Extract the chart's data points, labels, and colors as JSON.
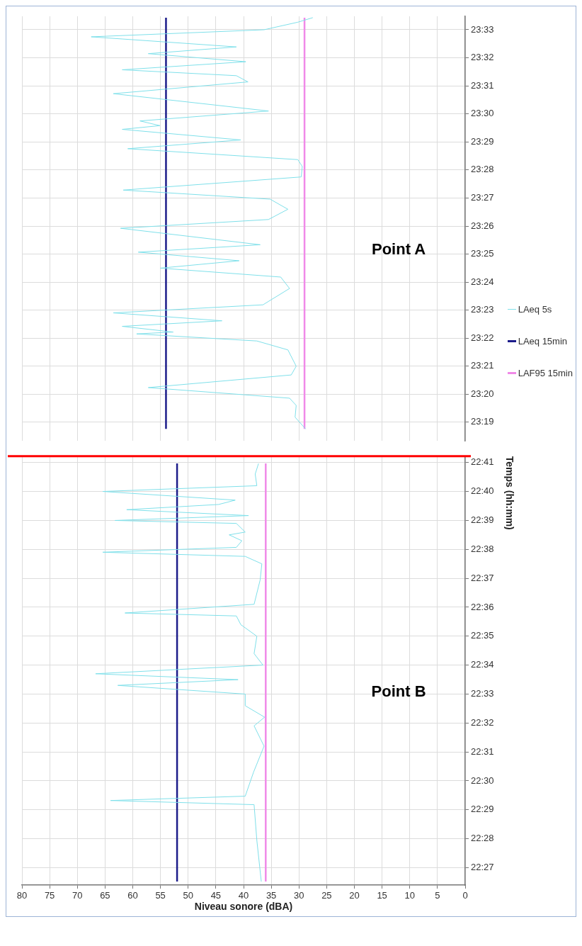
{
  "chart_data": [
    {
      "type": "line",
      "orientation": "horizontal",
      "xlabel": "Niveau sonore (dBA)",
      "ylabel": "Temps (hh:mm)",
      "annotations": [
        "Point B"
      ],
      "legend": "right",
      "grid": true,
      "marker": "none",
      "xlim": [
        80,
        0
      ],
      "ylim": [
        22.44,
        22.687
      ],
      "xticks": [
        80,
        75,
        70,
        65,
        60,
        55,
        50,
        45,
        40,
        35,
        30,
        25,
        20,
        15,
        10,
        5,
        0
      ],
      "yticks": [
        {
          "value": 22.45,
          "label": "22:27"
        },
        {
          "value": 22.4667,
          "label": "22:28"
        },
        {
          "value": 22.4833,
          "label": "22:29"
        },
        {
          "value": 22.5,
          "label": "22:30"
        },
        {
          "value": 22.5167,
          "label": "22:31"
        },
        {
          "value": 22.5333,
          "label": "22:32"
        },
        {
          "value": 22.55,
          "label": "22:33"
        },
        {
          "value": 22.5667,
          "label": "22:34"
        },
        {
          "value": 22.5833,
          "label": "22:35"
        },
        {
          "value": 22.6,
          "label": "22:36"
        },
        {
          "value": 22.6167,
          "label": "22:37"
        },
        {
          "value": 22.6333,
          "label": "22:38"
        },
        {
          "value": 22.65,
          "label": "22:39"
        },
        {
          "value": 22.6667,
          "label": "22:40"
        },
        {
          "value": 22.6833,
          "label": "22:41"
        }
      ],
      "ref_lines": [
        {
          "axis": "y",
          "value": 22.687,
          "color": "#ff0000"
        }
      ],
      "series": [
        {
          "name": "LAeq 5s",
          "color": "#7fe0ea",
          "x": [
            22.442,
            22.4657,
            22.4863,
            22.4887,
            22.4912,
            22.505,
            22.52,
            22.5317,
            22.5367,
            22.5433,
            22.55,
            22.555,
            22.5583,
            22.5617,
            22.5667,
            22.5733,
            22.5833,
            22.59,
            22.595,
            22.5967,
            22.6017,
            22.6158,
            22.625,
            22.6293,
            22.6317,
            22.6345,
            22.6383,
            22.6417,
            22.6433,
            22.6483,
            22.65,
            22.6528,
            22.6562,
            22.6592,
            22.6617,
            22.6667,
            22.67,
            22.6767,
            22.6828
          ],
          "values": [
            36.8,
            37.6,
            38.1,
            64.0,
            39.7,
            38.2,
            36.3,
            38.1,
            36.2,
            39.7,
            39.7,
            62.7,
            41.0,
            66.7,
            36.5,
            38.1,
            37.6,
            40.5,
            41.3,
            61.4,
            38.1,
            37.0,
            36.7,
            39.7,
            65.4,
            41.3,
            40.3,
            42.6,
            39.7,
            41.3,
            63.2,
            39.1,
            61.1,
            44.5,
            41.5,
            65.4,
            37.6,
            37.9,
            37.3
          ]
        },
        {
          "name": "LAeq 15min",
          "color": "#1c1c8a",
          "x": [
            22.442,
            22.6828
          ],
          "values": [
            52,
            52
          ]
        },
        {
          "name": "LAF95 15min",
          "color": "#f08ae8",
          "x": [
            22.442,
            22.6828
          ],
          "values": [
            36,
            36
          ]
        }
      ]
    },
    {
      "type": "line",
      "orientation": "horizontal",
      "annotations": [
        "Point A"
      ],
      "grid": true,
      "marker": "none",
      "tick_labels": "y",
      "xlim": [
        80,
        0
      ],
      "ylim": [
        23.3056,
        23.558
      ],
      "xticks": [
        80,
        75,
        70,
        65,
        60,
        55,
        50,
        45,
        40,
        35,
        30,
        25,
        20,
        15,
        10,
        5,
        0
      ],
      "yticks": [
        {
          "value": 23.3167,
          "label": "23:19"
        },
        {
          "value": 23.3333,
          "label": "23:20"
        },
        {
          "value": 23.35,
          "label": "23:21"
        },
        {
          "value": 23.3667,
          "label": "23:22"
        },
        {
          "value": 23.3833,
          "label": "23:23"
        },
        {
          "value": 23.4,
          "label": "23:24"
        },
        {
          "value": 23.4167,
          "label": "23:25"
        },
        {
          "value": 23.4333,
          "label": "23:26"
        },
        {
          "value": 23.45,
          "label": "23:27"
        },
        {
          "value": 23.4667,
          "label": "23:28"
        },
        {
          "value": 23.4833,
          "label": "23:29"
        },
        {
          "value": 23.5,
          "label": "23:30"
        },
        {
          "value": 23.5167,
          "label": "23:31"
        },
        {
          "value": 23.5333,
          "label": "23:32"
        },
        {
          "value": 23.55,
          "label": "23:33"
        }
      ],
      "series": [
        {
          "color": "#7fe0ea",
          "x": [
            23.3127,
            23.3197,
            23.3267,
            23.331,
            23.3373,
            23.3448,
            23.35,
            23.3597,
            23.365,
            23.3692,
            23.3703,
            23.3737,
            23.377,
            23.3817,
            23.3865,
            23.3962,
            23.403,
            23.4083,
            23.4127,
            23.4178,
            23.4222,
            23.432,
            23.4372,
            23.4433,
            23.4493,
            23.4547,
            23.4625,
            23.4687,
            23.4728,
            23.4793,
            23.4845,
            23.4908,
            23.493,
            23.4958,
            23.5017,
            23.512,
            23.519,
            23.5227,
            23.5262,
            23.531,
            23.5358,
            23.5398,
            23.5458,
            23.55,
            23.5545,
            23.5572
          ],
          "values": [
            28.8,
            30.7,
            30.5,
            31.7,
            57.2,
            31.4,
            30.5,
            32.0,
            37.6,
            59.3,
            52.7,
            61.9,
            43.9,
            63.5,
            36.5,
            31.7,
            33.3,
            55.0,
            40.8,
            59.0,
            37.0,
            62.2,
            35.5,
            32.0,
            35.2,
            61.7,
            29.6,
            29.4,
            30.2,
            60.9,
            40.5,
            61.9,
            55.1,
            58.7,
            35.5,
            63.5,
            39.2,
            41.3,
            61.9,
            39.6,
            57.2,
            41.3,
            67.5,
            36.3,
            30.2,
            27.5
          ]
        },
        {
          "color": "#1c1c8a",
          "x": [
            23.3127,
            23.5572
          ],
          "values": [
            54,
            54
          ]
        },
        {
          "color": "#f08ae8",
          "x": [
            23.3127,
            23.5572
          ],
          "values": [
            29,
            29
          ]
        }
      ]
    }
  ]
}
